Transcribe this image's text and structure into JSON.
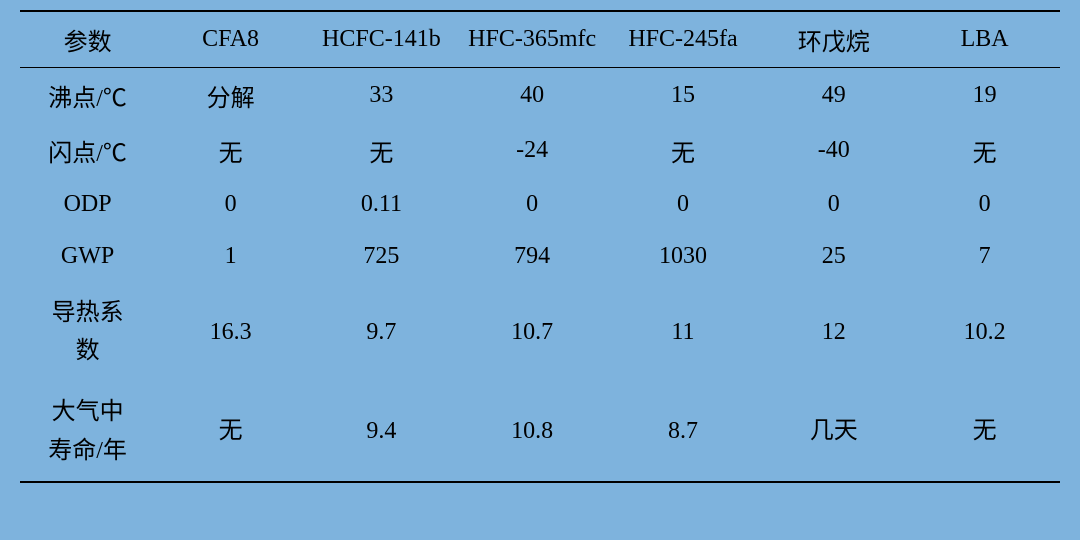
{
  "table": {
    "background_color": "#7eb3dd",
    "text_color": "#000000",
    "border_color": "#000000",
    "font_size": 24,
    "columns": [
      "参数",
      "CFA8",
      "HCFC-141b",
      "HFC-365mfc",
      "HFC-245fa",
      "环戊烷",
      "LBA"
    ],
    "rows": [
      {
        "param": "沸点/℃",
        "values": [
          "分解",
          "33",
          "40",
          "15",
          "49",
          "19"
        ],
        "tall": false
      },
      {
        "param": "闪点/℃",
        "values": [
          "无",
          "无",
          "-24",
          "无",
          "-40",
          "无"
        ],
        "tall": false
      },
      {
        "param": "ODP",
        "values": [
          "0",
          "0.11",
          "0",
          "0",
          "0",
          "0"
        ],
        "tall": false
      },
      {
        "param": "GWP",
        "values": [
          "1",
          "725",
          "794",
          "1030",
          "25",
          "7"
        ],
        "tall": false
      },
      {
        "param": "导热系\n数",
        "values": [
          "16.3",
          "9.7",
          "10.7",
          "11",
          "12",
          "10.2"
        ],
        "tall": true
      },
      {
        "param": "大气中\n寿命/年",
        "values": [
          "无",
          "9.4",
          "10.8",
          "8.7",
          "几天",
          "无"
        ],
        "tall": true
      }
    ]
  }
}
